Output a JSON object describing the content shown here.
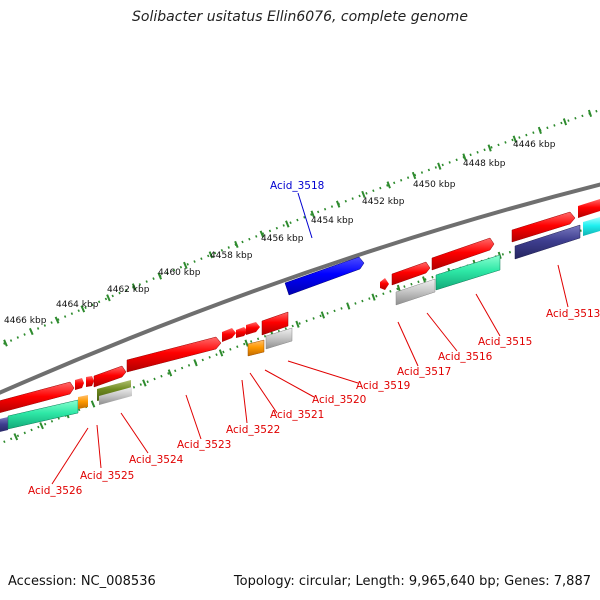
{
  "title": "Solibacter usitatus Ellin6076, complete genome",
  "footer": {
    "accession": "Accession: NC_008536",
    "summary": "Topology: circular; Length: 9,965,640 bp; Genes: 7,887"
  },
  "colors": {
    "backbone": "#7f7f7f",
    "ruler": "#2e8b2e",
    "label_red": "#e00000",
    "label_blue": "#0000d0"
  },
  "ruler_labels": [
    "4446 kbp",
    "4448 kbp",
    "4450 kbp",
    "4452 kbp",
    "4454 kbp",
    "4456 kbp",
    "4458 kbp",
    "4460 kbp",
    "4462 kbp",
    "4464 kbp",
    "4466 kbp"
  ],
  "gene_labels": {
    "acid_3513": "Acid_3513",
    "acid_3515": "Acid_3515",
    "acid_3516": "Acid_3516",
    "acid_3517": "Acid_3517",
    "acid_3518": "Acid_3518",
    "acid_3519": "Acid_3519",
    "acid_3520": "Acid_3520",
    "acid_3521": "Acid_3521",
    "acid_3522": "Acid_3522",
    "acid_3523": "Acid_3523",
    "acid_3524": "Acid_3524",
    "acid_3525": "Acid_3525",
    "acid_3526": "Acid_3526"
  }
}
